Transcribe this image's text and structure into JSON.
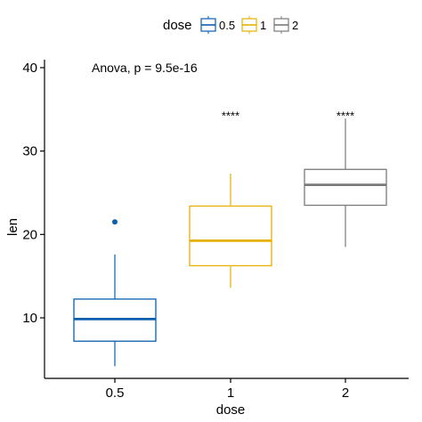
{
  "chart_data": {
    "type": "box",
    "title": "",
    "xlabel": "dose",
    "ylabel": "len",
    "ylim": [
      3,
      42
    ],
    "yticks": [
      10,
      20,
      30,
      40
    ],
    "categories": [
      "0.5",
      "1",
      "2"
    ],
    "legend": {
      "title": "dose",
      "position": "top",
      "entries": [
        "0.5",
        "1",
        "2"
      ]
    },
    "annotation": "Anova, p = 9.5e-16",
    "significance": [
      "",
      "****",
      "****"
    ],
    "significance_y": 34.2,
    "series": [
      {
        "name": "0.5",
        "color": "#0b5fad",
        "min": 4.2,
        "q1": 7.2,
        "median": 9.85,
        "q3": 12.25,
        "max": 17.6,
        "outliers": [
          21.5
        ]
      },
      {
        "name": "1",
        "color": "#e6b000",
        "min": 13.6,
        "q1": 16.25,
        "median": 19.25,
        "q3": 23.4,
        "max": 27.3,
        "outliers": []
      },
      {
        "name": "2",
        "color": "#7a7a7a",
        "min": 18.5,
        "q1": 23.5,
        "median": 25.95,
        "q3": 27.8,
        "max": 33.9,
        "outliers": []
      }
    ],
    "grid": false
  }
}
